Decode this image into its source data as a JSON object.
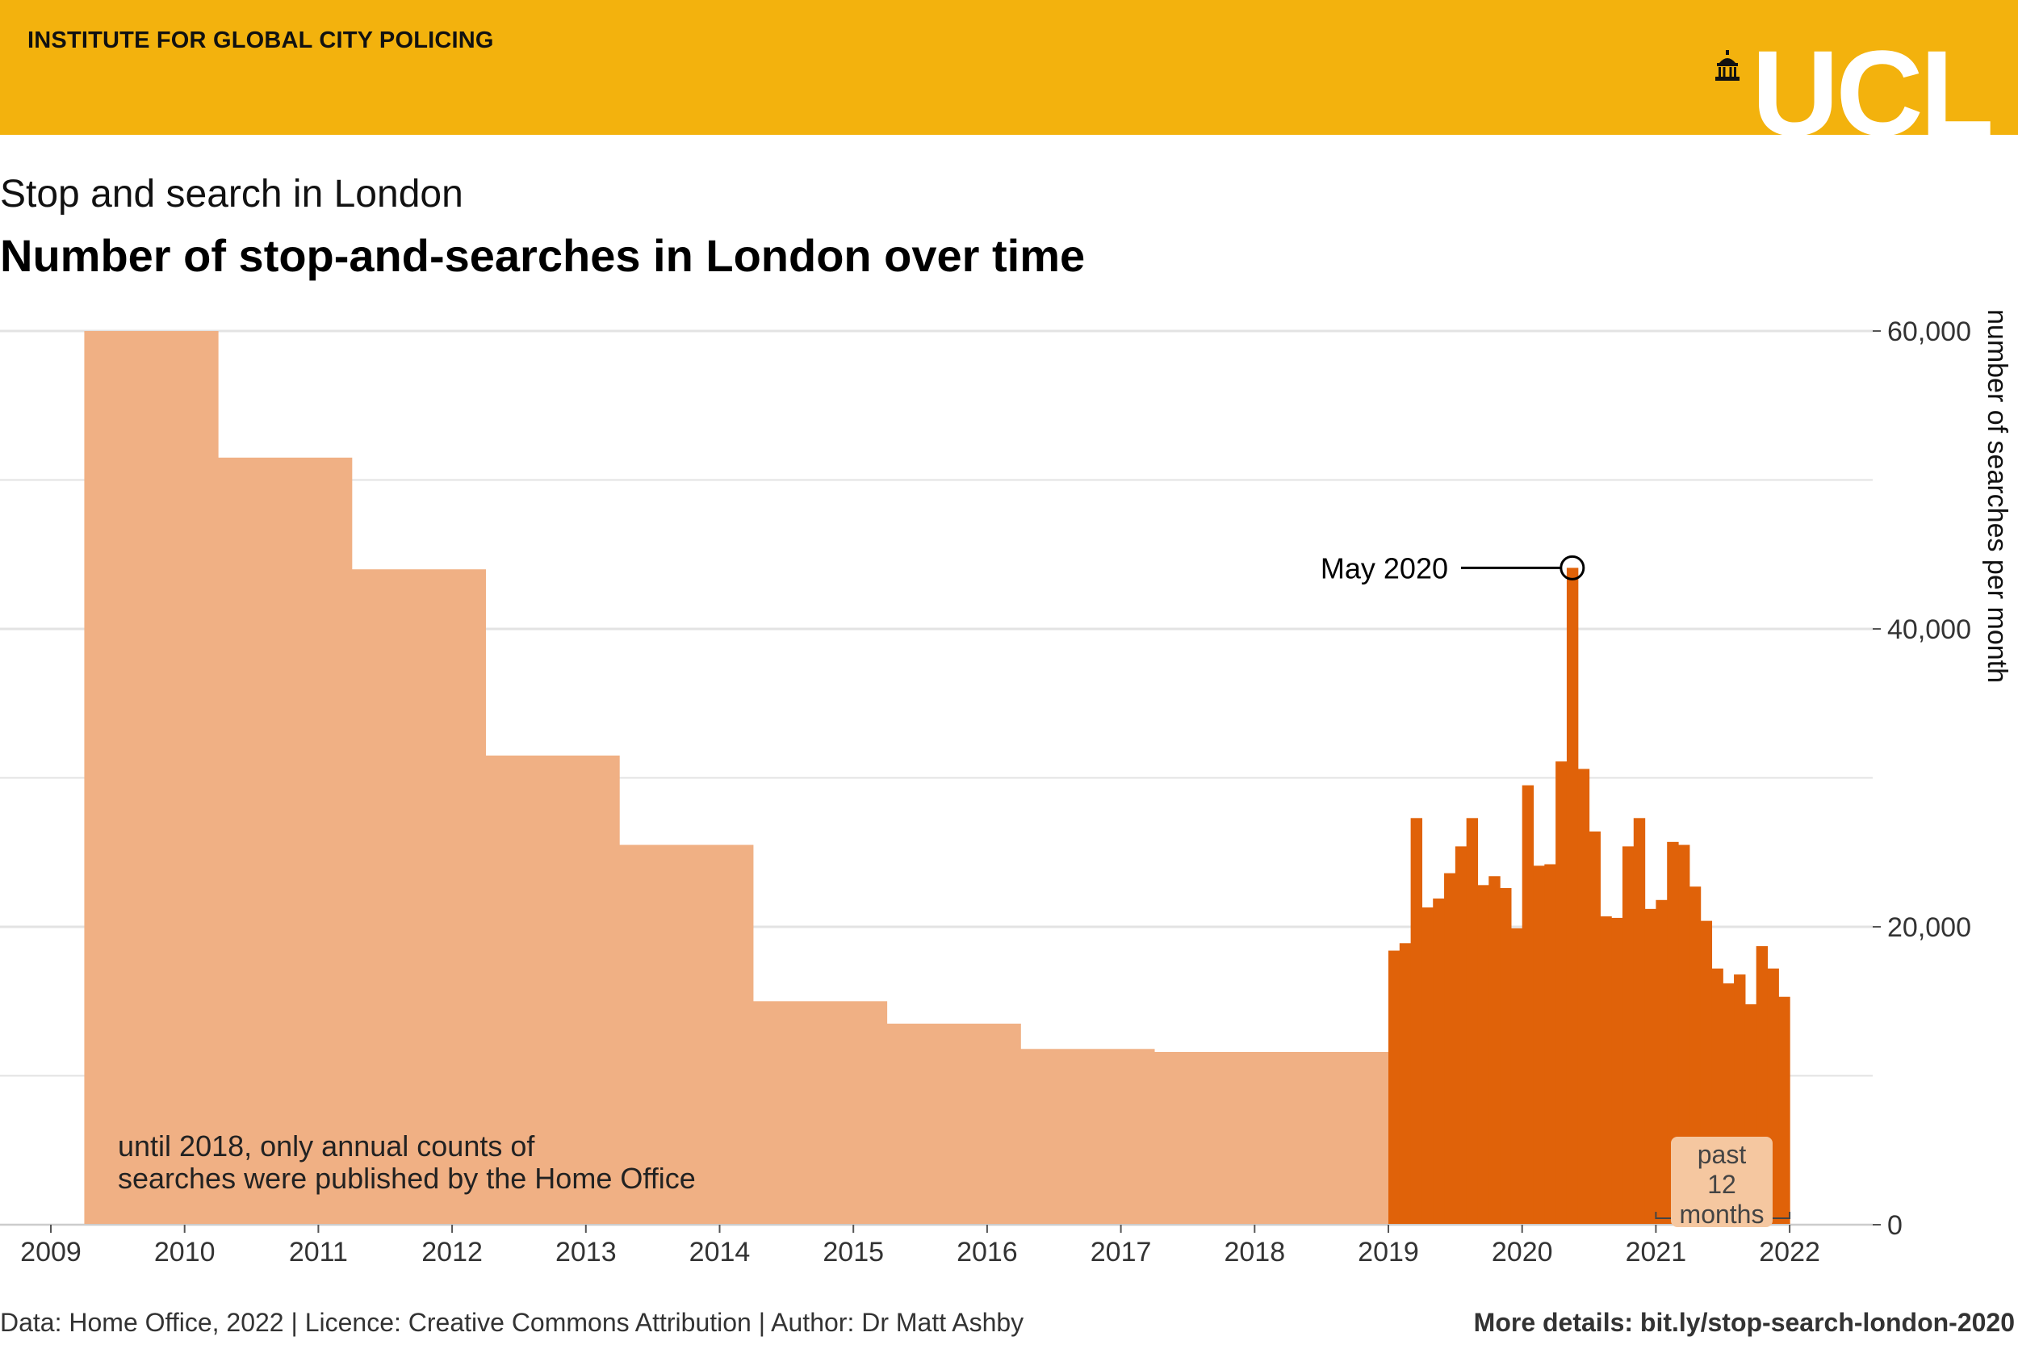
{
  "header": {
    "institute": "INSTITUTE FOR GLOBAL CITY POLICING",
    "logo_text": "UCL",
    "logo_icon": "ucl-portico-icon",
    "brand_color": "#f3b20d"
  },
  "subtitle": "Stop and search in London",
  "title": "Number of stop-and-searches in London over time",
  "annotations": {
    "peak_label": "May 2020",
    "note_line1": "until 2018, only annual counts of",
    "note_line2": "searches were published by the Home Office",
    "past_badge": [
      "past",
      "12",
      "months"
    ]
  },
  "footer": {
    "left": "Data: Home Office, 2022 | Licence: Creative Commons Attribution | Author: Dr Matt Ashby",
    "right": "More details: bit.ly/stop-search-london-2020"
  },
  "chart_data": {
    "type": "bar",
    "title": "Number of stop-and-searches in London over time",
    "ylabel": "number of searches per month",
    "ylim": [
      0,
      60000
    ],
    "yticks": [
      0,
      20000,
      40000,
      60000
    ],
    "ytick_labels": [
      "0",
      "20,000",
      "40,000",
      "60,000"
    ],
    "xlim": [
      "2009",
      "2022"
    ],
    "xticks": [
      "2009",
      "2010",
      "2011",
      "2012",
      "2013",
      "2014",
      "2015",
      "2016",
      "2017",
      "2018",
      "2019",
      "2020",
      "2021",
      "2022"
    ],
    "grid": true,
    "y_axis_side": "right",
    "colors": {
      "annual": "#f0b084",
      "monthly": "#e06209"
    },
    "annual_series": {
      "description_of_values": "monthly average over each financial year",
      "periods": [
        "2009-04 to 2010-03",
        "2010-04 to 2011-03",
        "2011-04 to 2012-03",
        "2012-04 to 2013-03",
        "2013-04 to 2014-03",
        "2014-04 to 2015-03",
        "2015-04 to 2016-03",
        "2016-04 to 2017-03",
        "2017-04 to 2018-03",
        "2018-04 to 2019-03"
      ],
      "values": [
        60000,
        51500,
        44000,
        31500,
        25500,
        15000,
        13500,
        11800,
        11600,
        11600
      ]
    },
    "monthly_series": {
      "start": "2019-01",
      "months": [
        "2019-01",
        "2019-02",
        "2019-03",
        "2019-04",
        "2019-05",
        "2019-06",
        "2019-07",
        "2019-08",
        "2019-09",
        "2019-10",
        "2019-11",
        "2019-12",
        "2020-01",
        "2020-02",
        "2020-03",
        "2020-04",
        "2020-05",
        "2020-06",
        "2020-07",
        "2020-08",
        "2020-09",
        "2020-10",
        "2020-11",
        "2020-12",
        "2021-01",
        "2021-02",
        "2021-03",
        "2021-04",
        "2021-05",
        "2021-06",
        "2021-07",
        "2021-08",
        "2021-09",
        "2021-10",
        "2021-11",
        "2021-12"
      ],
      "values": [
        18400,
        18900,
        27300,
        21300,
        21900,
        23600,
        25400,
        27300,
        22800,
        23400,
        22600,
        19900,
        29500,
        24100,
        24200,
        31100,
        44100,
        30600,
        26400,
        20700,
        20600,
        25400,
        27300,
        21200,
        21800,
        25700,
        25500,
        22700,
        20400,
        17200,
        16200,
        16800,
        14800,
        18700,
        17200,
        15300
      ]
    },
    "highlight": {
      "month": "2020-05",
      "value": 44100,
      "label": "May 2020"
    }
  }
}
